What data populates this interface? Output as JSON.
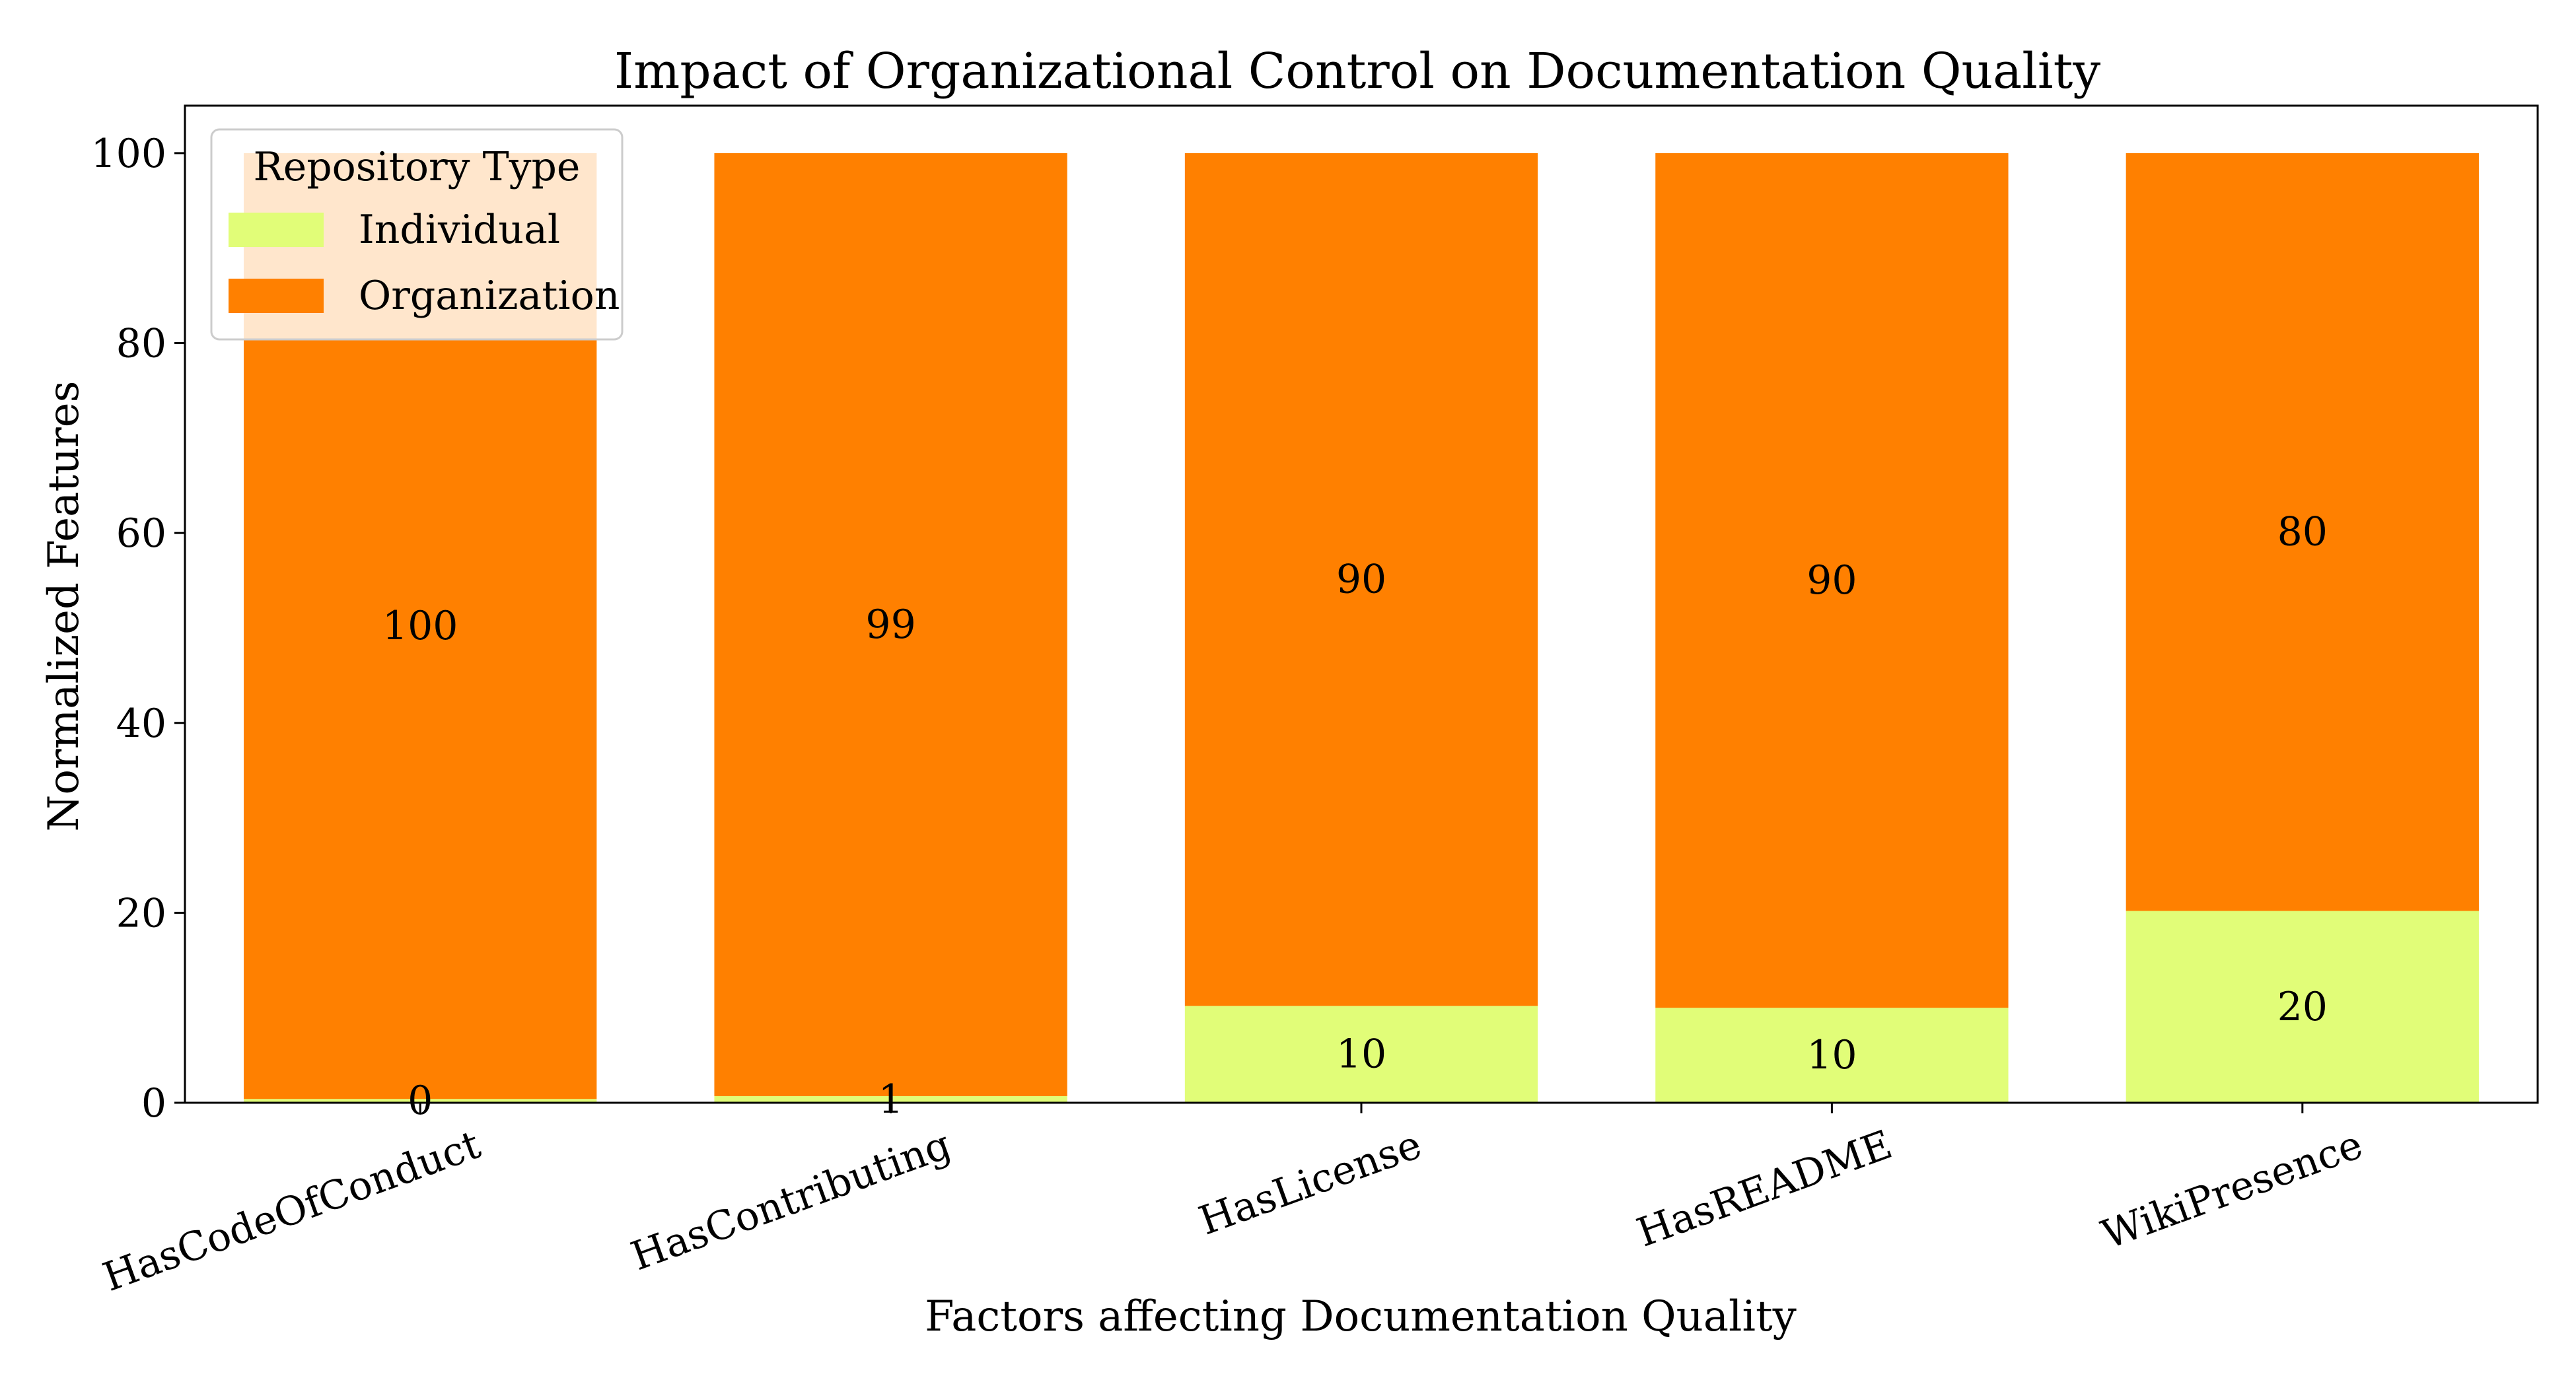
{
  "chart_data": {
    "type": "bar",
    "stacked": true,
    "title": "Impact of Organizational Control on Documentation Quality",
    "xlabel": "Factors affecting Documentation Quality",
    "ylabel": "Normalized Features",
    "categories": [
      "HasCodeOfConduct",
      "HasContributing",
      "HasLicense",
      "HasREADME",
      "WikiPresence"
    ],
    "series": [
      {
        "name": "Individual",
        "color": "#e1fd78",
        "values": [
          0.4,
          0.7,
          10.2,
          10.0,
          20.2
        ],
        "labels": [
          "0",
          "1",
          "10",
          "10",
          "20"
        ]
      },
      {
        "name": "Organization",
        "color": "#ff8000",
        "values": [
          99.6,
          99.3,
          89.8,
          90.0,
          79.8
        ],
        "labels": [
          "100",
          "99",
          "90",
          "90",
          "80"
        ]
      }
    ],
    "ylim": [
      0,
      105
    ],
    "yticks": [
      0,
      20,
      40,
      60,
      80,
      100
    ],
    "grid": false,
    "legend": {
      "title": "Repository Type",
      "position": "upper-left",
      "entries": [
        "Individual",
        "Organization"
      ]
    }
  }
}
